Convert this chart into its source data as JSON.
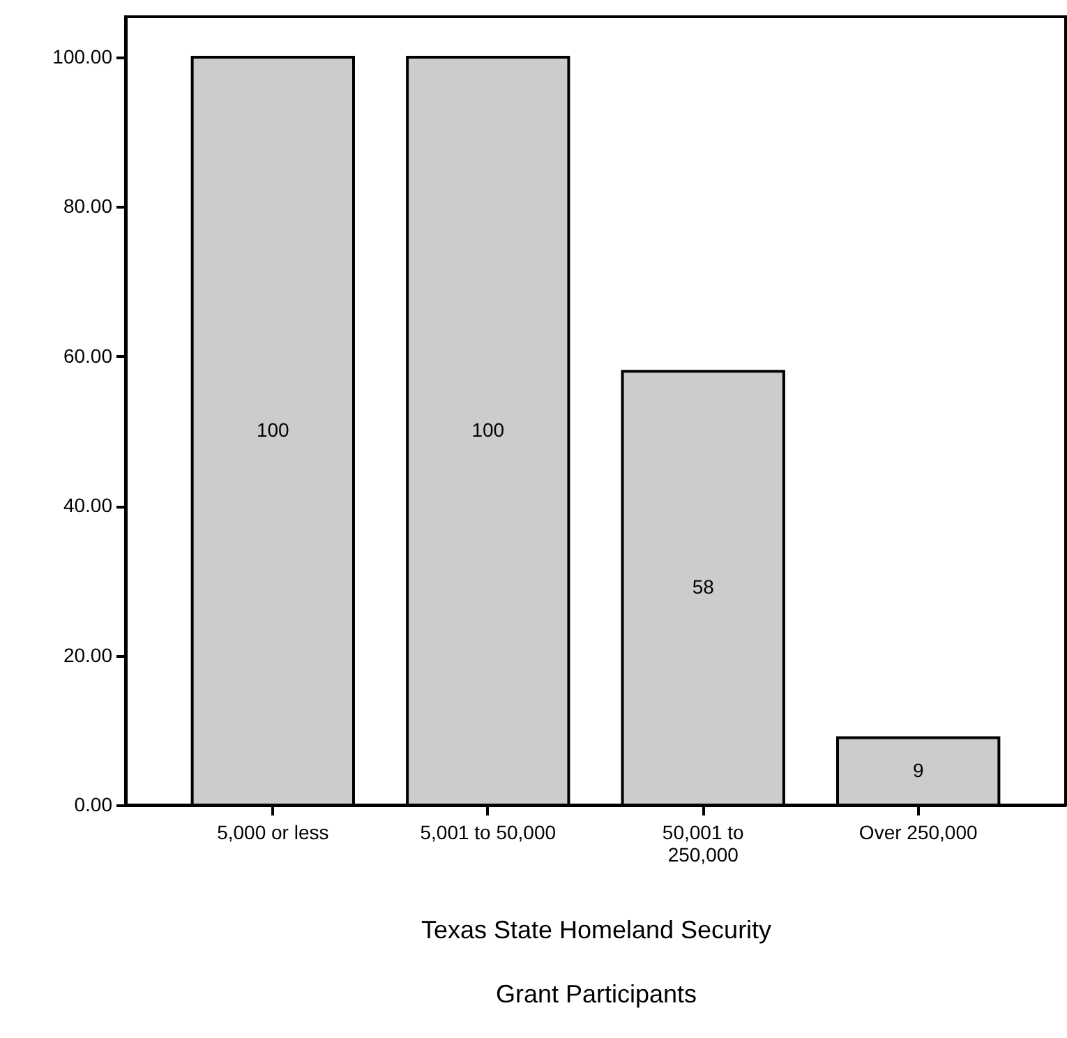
{
  "chart_data": {
    "type": "bar",
    "xlabel": "Texas State Homeland Security\nGrant Participants",
    "categories": [
      "5,000 or less",
      "5,001 to 50,000",
      "50,001 to 250,000",
      "Over 250,000"
    ],
    "values": [
      100,
      100,
      58,
      9
    ],
    "color": "#cccccc",
    "data_labels": true,
    "ylim": [
      0,
      105.4
    ],
    "yticks": [
      {
        "value": 0,
        "label": "0.00"
      },
      {
        "value": 20,
        "label": "20.00"
      },
      {
        "value": 40,
        "label": "40.00"
      },
      {
        "value": 60,
        "label": "60.00"
      },
      {
        "value": 80,
        "label": "80.00"
      },
      {
        "value": 100,
        "label": "100.00"
      }
    ]
  }
}
